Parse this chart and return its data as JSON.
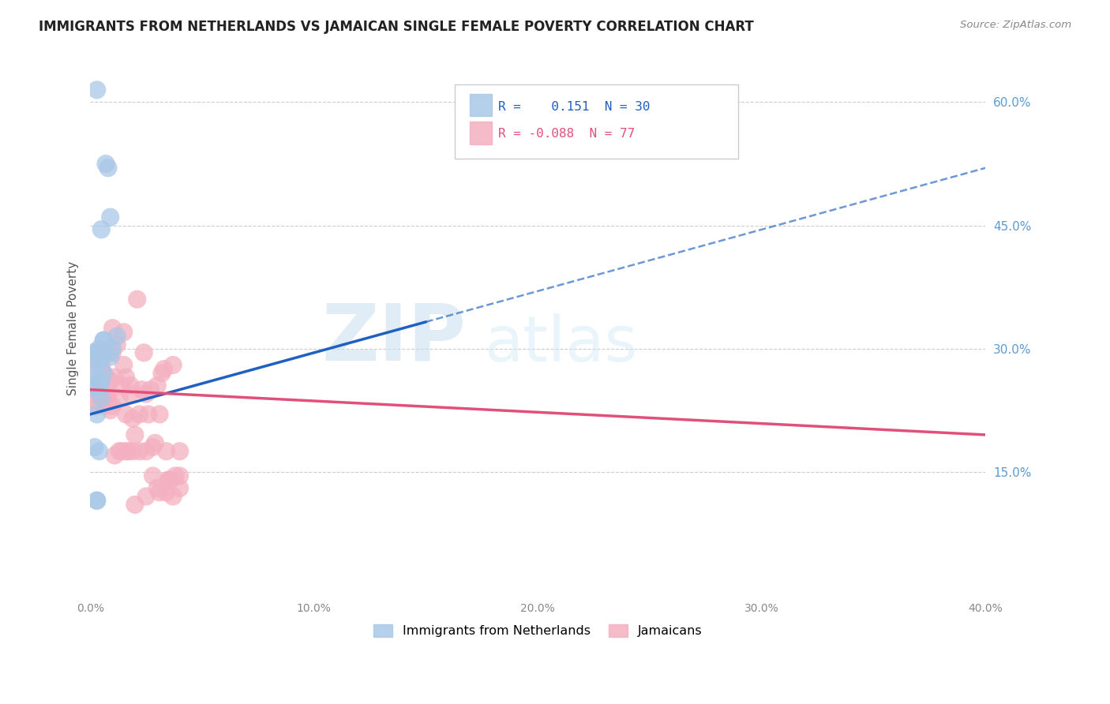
{
  "title": "IMMIGRANTS FROM NETHERLANDS VS JAMAICAN SINGLE FEMALE POVERTY CORRELATION CHART",
  "source": "Source: ZipAtlas.com",
  "ylabel": "Single Female Poverty",
  "right_yticks": [
    0.15,
    0.3,
    0.45,
    0.6
  ],
  "right_ytick_labels": [
    "15.0%",
    "30.0%",
    "45.0%",
    "60.0%"
  ],
  "legend_bottom": [
    "Immigrants from Netherlands",
    "Jamaicans"
  ],
  "R_blue": 0.151,
  "N_blue": 30,
  "R_pink": -0.088,
  "N_pink": 77,
  "blue_color": "#a8c8e8",
  "pink_color": "#f4b0c0",
  "blue_line_color": "#2060c0",
  "pink_line_color": "#e0507a",
  "watermark_zip": "ZIP",
  "watermark_atlas": "atlas",
  "xlim": [
    0.0,
    0.4
  ],
  "ylim": [
    0.0,
    0.65
  ],
  "blue_scatter_x": [
    0.003,
    0.007,
    0.008,
    0.005,
    0.009,
    0.012,
    0.006,
    0.01,
    0.004,
    0.003,
    0.002,
    0.006,
    0.003,
    0.005,
    0.001,
    0.002,
    0.004,
    0.003,
    0.005,
    0.006,
    0.003,
    0.002,
    0.004,
    0.007,
    0.005,
    0.004,
    0.003,
    0.003,
    0.006,
    0.009
  ],
  "blue_scatter_y": [
    0.615,
    0.525,
    0.52,
    0.445,
    0.46,
    0.315,
    0.31,
    0.3,
    0.3,
    0.29,
    0.275,
    0.27,
    0.265,
    0.26,
    0.295,
    0.255,
    0.255,
    0.25,
    0.24,
    0.295,
    0.22,
    0.18,
    0.175,
    0.295,
    0.29,
    0.285,
    0.115,
    0.115,
    0.31,
    0.29
  ],
  "pink_scatter_x": [
    0.003,
    0.005,
    0.007,
    0.009,
    0.011,
    0.014,
    0.016,
    0.018,
    0.002,
    0.004,
    0.006,
    0.003,
    0.005,
    0.007,
    0.009,
    0.012,
    0.015,
    0.018,
    0.021,
    0.024,
    0.027,
    0.03,
    0.033,
    0.036,
    0.04,
    0.002,
    0.004,
    0.006,
    0.008,
    0.01,
    0.013,
    0.016,
    0.019,
    0.022,
    0.025,
    0.028,
    0.031,
    0.034,
    0.037,
    0.04,
    0.001,
    0.003,
    0.005,
    0.007,
    0.009,
    0.011,
    0.014,
    0.017,
    0.02,
    0.023,
    0.026,
    0.029,
    0.032,
    0.035,
    0.038,
    0.002,
    0.004,
    0.006,
    0.008,
    0.01,
    0.013,
    0.016,
    0.019,
    0.022,
    0.025,
    0.028,
    0.031,
    0.034,
    0.037,
    0.01,
    0.015,
    0.02,
    0.025,
    0.03,
    0.035,
    0.04,
    0.003
  ],
  "pink_scatter_y": [
    0.29,
    0.27,
    0.265,
    0.26,
    0.265,
    0.255,
    0.265,
    0.255,
    0.285,
    0.28,
    0.27,
    0.285,
    0.28,
    0.245,
    0.295,
    0.305,
    0.32,
    0.245,
    0.36,
    0.295,
    0.25,
    0.255,
    0.275,
    0.14,
    0.145,
    0.255,
    0.28,
    0.27,
    0.245,
    0.295,
    0.24,
    0.22,
    0.215,
    0.22,
    0.245,
    0.18,
    0.22,
    0.175,
    0.28,
    0.175,
    0.25,
    0.23,
    0.235,
    0.23,
    0.225,
    0.17,
    0.175,
    0.175,
    0.195,
    0.25,
    0.22,
    0.185,
    0.27,
    0.14,
    0.145,
    0.235,
    0.25,
    0.24,
    0.235,
    0.23,
    0.175,
    0.175,
    0.175,
    0.175,
    0.175,
    0.145,
    0.125,
    0.125,
    0.12,
    0.325,
    0.28,
    0.11,
    0.12,
    0.13,
    0.14,
    0.13,
    0.295
  ]
}
